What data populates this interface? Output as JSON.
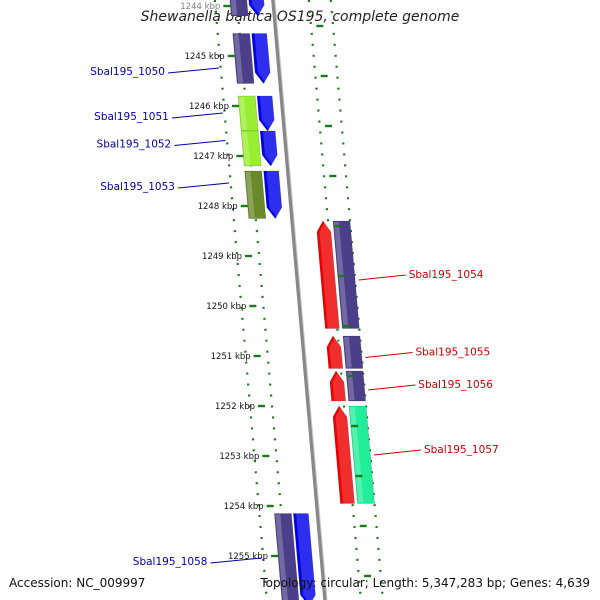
{
  "title": "Shewanella baltica OS195, complete genome",
  "accession_label": "Accession: NC_009997",
  "summary_label": "Topology: circular; Length: 5,347,283 bp; Genes: 4,639",
  "colors": {
    "backbone": "#888888",
    "ticks": "#1a7a1a",
    "left_label": "#0000aa",
    "right_label": "#cc0000",
    "strand_blue": "#0000ee",
    "strand_purple": "#4b3f8a",
    "red": "#ee0000",
    "lime": "#99ee33",
    "olive": "#6a8a2a",
    "mint": "#22ee99"
  },
  "scale": {
    "unit": "kbp",
    "ticks": [
      {
        "kbp": 1244,
        "label": "1244 kbp"
      },
      {
        "kbp": 1245,
        "label": "1245 kbp"
      },
      {
        "kbp": 1246,
        "label": "1246 kbp"
      },
      {
        "kbp": 1247,
        "label": "1247 kbp"
      },
      {
        "kbp": 1248,
        "label": "1248 kbp"
      },
      {
        "kbp": 1249,
        "label": "1249 kbp"
      },
      {
        "kbp": 1250,
        "label": "1250 kbp"
      },
      {
        "kbp": 1251,
        "label": "1251 kbp"
      },
      {
        "kbp": 1252,
        "label": "1252 kbp"
      },
      {
        "kbp": 1253,
        "label": "1253 kbp"
      },
      {
        "kbp": 1254,
        "label": "1254 kbp"
      },
      {
        "kbp": 1255,
        "label": "1255 kbp"
      }
    ]
  },
  "features": [
    {
      "id": "gene-top",
      "label": "",
      "side": "left",
      "start": 1243.5,
      "end": 1244.2,
      "track": "forward",
      "dir": "down",
      "pair": "strand_purple",
      "inner": "strand_blue"
    },
    {
      "id": "Sbal195_1050",
      "label": "Sbal195_1050",
      "side": "left",
      "start": 1244.55,
      "end": 1245.55,
      "dir": "down",
      "pair": "strand_purple",
      "inner": "strand_blue",
      "label_kbp": 1245.3
    },
    {
      "id": "Sbal195_1051",
      "label": "Sbal195_1051",
      "side": "left",
      "start": 1245.8,
      "end": 1246.5,
      "dir": "down",
      "pair": "lime",
      "inner": "strand_blue",
      "label_kbp": 1246.2
    },
    {
      "id": "Sbal195_1052",
      "label": "Sbal195_1052",
      "side": "left",
      "start": 1246.5,
      "end": 1247.2,
      "dir": "down",
      "pair": "lime",
      "inner": "strand_blue",
      "label_kbp": 1246.75
    },
    {
      "id": "Sbal195_1053",
      "label": "Sbal195_1053",
      "side": "left",
      "start": 1247.3,
      "end": 1248.25,
      "dir": "down",
      "pair": "olive",
      "inner": "strand_blue",
      "label_kbp": 1247.6
    },
    {
      "id": "Sbal195_1054",
      "label": "Sbal195_1054",
      "side": "right",
      "start": 1248.3,
      "end": 1250.45,
      "dir": "up",
      "pair": "strand_purple",
      "inner": "red",
      "label_kbp": 1249.4
    },
    {
      "id": "Sbal195_1055",
      "label": "Sbal195_1055",
      "side": "right",
      "start": 1250.6,
      "end": 1251.25,
      "dir": "up",
      "pair": "strand_purple",
      "inner": "red",
      "label_kbp": 1250.95
    },
    {
      "id": "Sbal195_1056",
      "label": "Sbal195_1056",
      "side": "right",
      "start": 1251.3,
      "end": 1251.9,
      "dir": "up",
      "pair": "strand_purple",
      "inner": "red",
      "label_kbp": 1251.6
    },
    {
      "id": "Sbal195_1057",
      "label": "Sbal195_1057",
      "side": "right",
      "start": 1252.0,
      "end": 1253.95,
      "dir": "up",
      "pair": "mint",
      "inner": "red",
      "label_kbp": 1252.9
    },
    {
      "id": "Sbal195_1058",
      "label": "Sbal195_1058",
      "side": "left",
      "start": 1254.15,
      "end": 1256.0,
      "dir": "down",
      "pair": "strand_purple",
      "inner": "strand_blue",
      "label_kbp": 1255.1
    }
  ]
}
